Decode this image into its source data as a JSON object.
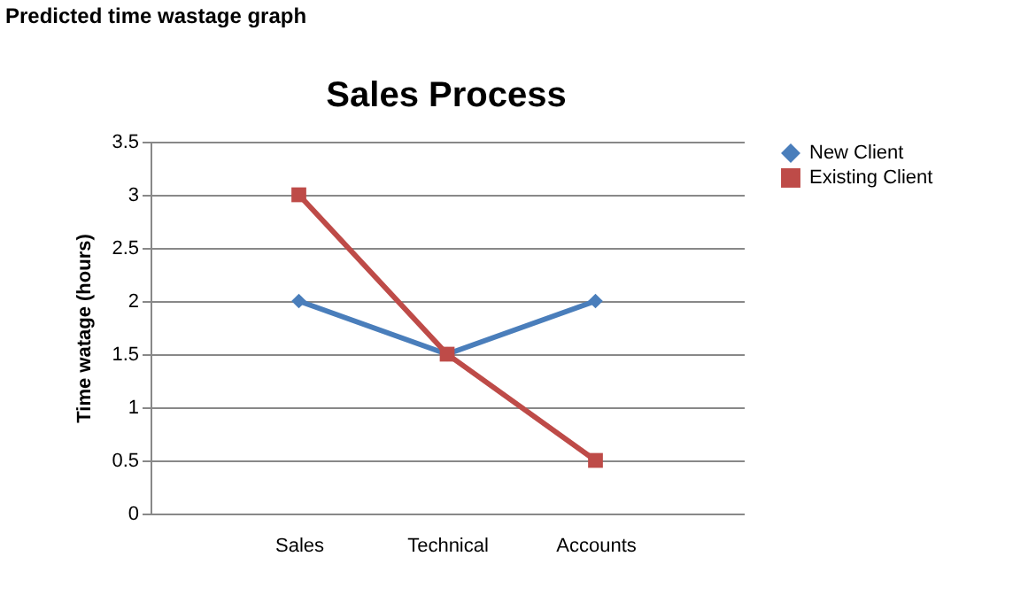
{
  "chart_data": {
    "type": "line",
    "title": "Sales Process",
    "ylabel": "Time watage (hours)",
    "annotations": [
      "Predicted time wastage graph"
    ],
    "categories": [
      "Sales",
      "Technical",
      "Accounts"
    ],
    "series": [
      {
        "name": "New Client",
        "color": "#4a7ebb",
        "values": [
          2,
          1.5,
          2
        ],
        "marker": "diamond"
      },
      {
        "name": "Existing Client",
        "color": "#be4b48",
        "values": [
          3,
          1.5,
          0.5
        ],
        "marker": "square"
      }
    ],
    "ylim": [
      0,
      3.5
    ],
    "yticks": [
      0,
      0.5,
      1,
      1.5,
      2,
      2.5,
      3,
      3.5
    ],
    "grid": "y",
    "legend": "right",
    "line_style": "solid"
  }
}
